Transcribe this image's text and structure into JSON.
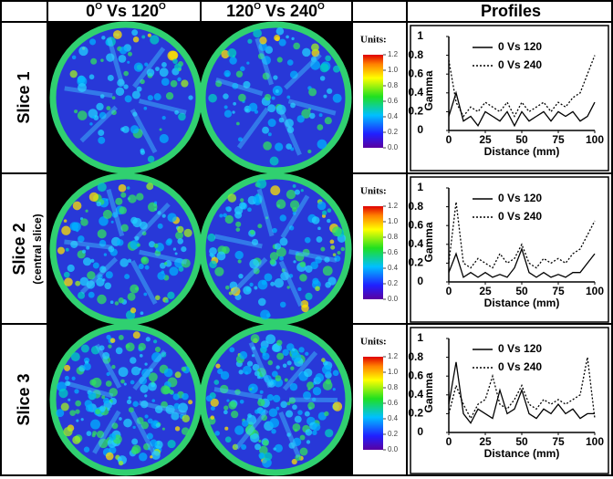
{
  "header": {
    "col1": [
      "0",
      "O",
      " Vs 120",
      "O"
    ],
    "col2": [
      "120",
      "O",
      " Vs 240",
      "O"
    ],
    "col4": "Profiles"
  },
  "rows": [
    {
      "label": "Slice 1",
      "colorbar": {
        "title": "Units:",
        "ticks": [
          {
            "value": 0,
            "label": "0.0"
          },
          0.2,
          0.4,
          0.6,
          0.8,
          {
            "value": 1,
            "label": "1.0"
          },
          1.2
        ]
      }
    },
    {
      "label": "Slice 2",
      "sublabel": "(central slice)",
      "colorbar": {
        "title": "Units:",
        "ticks": [
          {
            "value": 0,
            "label": "0.0"
          },
          0.2,
          0.4,
          0.6,
          0.8,
          {
            "value": 1,
            "label": "1.0"
          },
          1.2
        ]
      }
    },
    {
      "label": "Slice 3",
      "colorbar": {
        "title": "Units:",
        "ticks": [
          {
            "value": 0,
            "label": "0.0"
          },
          0.2,
          0.4,
          0.6,
          0.8,
          {
            "value": 1,
            "label": "1.0"
          },
          1.2
        ]
      }
    }
  ],
  "chart_data": [
    {
      "type": "line",
      "xlabel": "Distance (mm)",
      "ylabel": "Gamma",
      "x": [
        0,
        5,
        10,
        15,
        20,
        25,
        30,
        35,
        40,
        45,
        50,
        55,
        60,
        65,
        70,
        75,
        80,
        85,
        90,
        95,
        100
      ],
      "xlim": [
        0,
        100
      ],
      "ylim": [
        0,
        1
      ],
      "xticks": [
        0,
        25,
        50,
        75,
        100
      ],
      "yticks": [
        0,
        0.2,
        0.4,
        0.6,
        0.8,
        1
      ],
      "series": [
        {
          "name": "0 Vs 120",
          "color": "#000000",
          "style": "solid",
          "values": [
            0.15,
            0.4,
            0.1,
            0.15,
            0.05,
            0.2,
            0.15,
            0.1,
            0.2,
            0.05,
            0.2,
            0.1,
            0.15,
            0.2,
            0.1,
            0.2,
            0.15,
            0.2,
            0.1,
            0.15,
            0.3
          ]
        },
        {
          "name": "0 Vs 240",
          "color": "#000000",
          "style": "dotted",
          "values": [
            0.75,
            0.3,
            0.15,
            0.25,
            0.2,
            0.3,
            0.25,
            0.2,
            0.3,
            0.15,
            0.3,
            0.2,
            0.25,
            0.3,
            0.2,
            0.3,
            0.25,
            0.35,
            0.4,
            0.6,
            0.8
          ]
        }
      ]
    },
    {
      "type": "line",
      "xlabel": "Distance (mm)",
      "ylabel": "Gamma",
      "x": [
        0,
        5,
        10,
        15,
        20,
        25,
        30,
        35,
        40,
        45,
        50,
        55,
        60,
        65,
        70,
        75,
        80,
        85,
        90,
        95,
        100
      ],
      "xlim": [
        0,
        100
      ],
      "ylim": [
        0,
        1
      ],
      "xticks": [
        0,
        25,
        50,
        75,
        100
      ],
      "yticks": [
        0,
        0.2,
        0.4,
        0.6,
        0.8,
        1
      ],
      "series": [
        {
          "name": "0 Vs 120",
          "color": "#000000",
          "style": "solid",
          "values": [
            0.1,
            0.3,
            0.05,
            0.1,
            0.05,
            0.1,
            0.05,
            0.08,
            0.05,
            0.15,
            0.35,
            0.1,
            0.05,
            0.1,
            0.05,
            0.08,
            0.05,
            0.1,
            0.1,
            0.2,
            0.3
          ]
        },
        {
          "name": "0 Vs 240",
          "color": "#000000",
          "style": "dotted",
          "values": [
            0.2,
            0.85,
            0.2,
            0.15,
            0.25,
            0.2,
            0.15,
            0.3,
            0.2,
            0.25,
            0.4,
            0.2,
            0.15,
            0.25,
            0.2,
            0.25,
            0.2,
            0.3,
            0.35,
            0.5,
            0.65
          ]
        }
      ]
    },
    {
      "type": "line",
      "xlabel": "Distance (mm)",
      "ylabel": "Gamma",
      "x": [
        0,
        5,
        10,
        15,
        20,
        25,
        30,
        35,
        40,
        45,
        50,
        55,
        60,
        65,
        70,
        75,
        80,
        85,
        90,
        95,
        100
      ],
      "xlim": [
        0,
        100
      ],
      "ylim": [
        0,
        1
      ],
      "xticks": [
        0,
        25,
        50,
        75,
        100
      ],
      "yticks": [
        0,
        0.2,
        0.4,
        0.6,
        0.8,
        1
      ],
      "series": [
        {
          "name": "0 Vs 120",
          "color": "#000000",
          "style": "solid",
          "values": [
            0.3,
            0.75,
            0.2,
            0.1,
            0.25,
            0.2,
            0.15,
            0.45,
            0.2,
            0.25,
            0.45,
            0.2,
            0.15,
            0.25,
            0.2,
            0.3,
            0.2,
            0.25,
            0.15,
            0.2,
            0.2
          ]
        },
        {
          "name": "0 Vs 240",
          "color": "#000000",
          "style": "dotted",
          "values": [
            0.2,
            0.5,
            0.3,
            0.15,
            0.3,
            0.35,
            0.6,
            0.3,
            0.25,
            0.35,
            0.5,
            0.3,
            0.25,
            0.35,
            0.3,
            0.35,
            0.3,
            0.35,
            0.4,
            0.8,
            0.15
          ]
        }
      ]
    }
  ]
}
